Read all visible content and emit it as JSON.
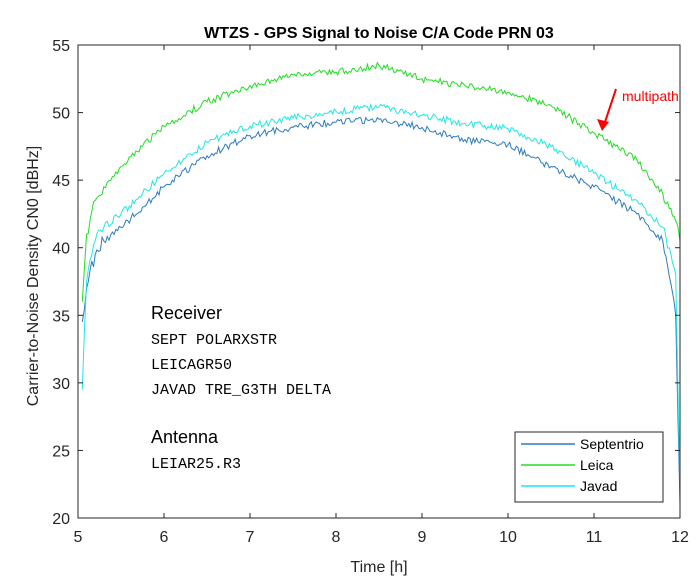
{
  "chart_data": {
    "type": "line",
    "title": "WTZS - GPS Signal to Noise C/A Code PRN 03",
    "xlabel": "Time [h]",
    "ylabel": "Carrier-to-Noise Density CN0 [dBHz]",
    "xlim": [
      5,
      12
    ],
    "ylim": [
      20,
      55
    ],
    "xticks": [
      5,
      6,
      7,
      8,
      9,
      10,
      11,
      12
    ],
    "yticks": [
      20,
      25,
      30,
      35,
      40,
      45,
      50,
      55
    ],
    "grid": false,
    "legend_position": "bottom-right",
    "x": [
      5.05,
      5.1,
      5.2,
      5.3,
      5.5,
      5.75,
      6.0,
      6.5,
      7.0,
      7.5,
      8.0,
      8.5,
      9.0,
      9.5,
      10.0,
      10.5,
      11.0,
      11.5,
      11.8,
      11.95,
      12.0
    ],
    "series": [
      {
        "name": "Septentrio",
        "color": "#2b7bc0",
        "values": [
          34.5,
          37.0,
          39.5,
          40.5,
          41.5,
          43.0,
          44.5,
          46.8,
          48.3,
          48.9,
          49.3,
          49.5,
          48.9,
          48.0,
          47.6,
          46.0,
          44.5,
          42.5,
          40.5,
          35.0,
          21.0
        ]
      },
      {
        "name": "Leica",
        "color": "#22dd22",
        "values": [
          36.0,
          41.0,
          43.5,
          44.5,
          46.0,
          47.5,
          49.0,
          50.8,
          52.0,
          52.8,
          53.0,
          53.5,
          52.5,
          52.0,
          51.5,
          50.5,
          48.5,
          46.5,
          44.0,
          42.0,
          40.5
        ]
      },
      {
        "name": "Javad",
        "color": "#22e6e6",
        "values": [
          29.5,
          37.5,
          40.5,
          41.5,
          42.5,
          44.0,
          45.5,
          47.8,
          49.0,
          49.6,
          50.1,
          50.4,
          49.8,
          49.2,
          48.8,
          47.5,
          45.5,
          43.5,
          41.5,
          38.0,
          22.0
        ]
      }
    ],
    "annotation": {
      "text": "multipath",
      "color": "#ff0000",
      "x": 11.1,
      "y": 49.2
    },
    "receiver_header": "Receiver",
    "receivers": [
      "SEPT POLARXSTR",
      "LEICAGR50",
      "JAVAD TRE_G3TH DELTA"
    ],
    "antenna_header": "Antenna",
    "antennas": [
      "LEIAR25.R3"
    ]
  }
}
